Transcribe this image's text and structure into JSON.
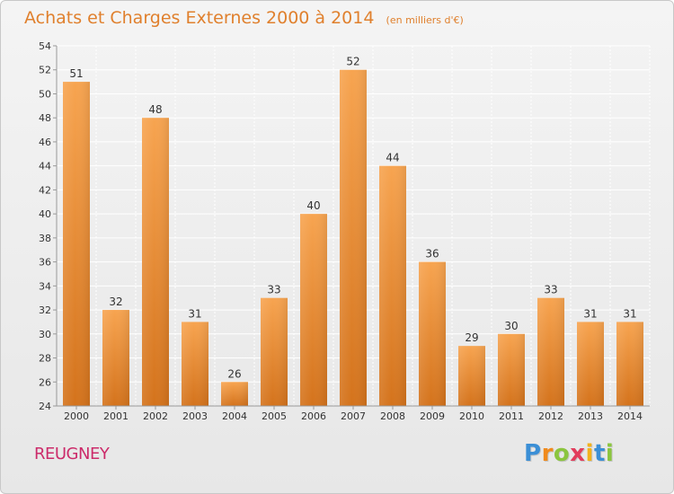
{
  "header": {
    "title": "Achats et Charges Externes 2000 à 2014",
    "subtitle": "(en milliers d'€)"
  },
  "commune": "REUGNEY",
  "brand": {
    "letters": [
      "P",
      "r",
      "o",
      "x",
      "i",
      "t",
      "i"
    ],
    "colors": [
      "#3b8fd6",
      "#f08a1c",
      "#8bc53f",
      "#e23d5c",
      "#f2b21b",
      "#3b8fd6",
      "#8bc53f"
    ]
  },
  "colors": {
    "bar_top": "#f7a450",
    "bar_bottom": "#d4731c",
    "title": "#e0802d",
    "commune": "#cc2b6a",
    "grid": "#ffffff",
    "axis": "#999999",
    "text": "#333333"
  },
  "chart_data": {
    "type": "bar",
    "title": "Achats et Charges Externes 2000 à 2014",
    "subtitle": "(en milliers d'€)",
    "categories": [
      "2000",
      "2001",
      "2002",
      "2003",
      "2004",
      "2005",
      "2006",
      "2007",
      "2008",
      "2009",
      "2010",
      "2011",
      "2012",
      "2013",
      "2014"
    ],
    "values": [
      51,
      32,
      48,
      31,
      26,
      33,
      40,
      52,
      44,
      36,
      29,
      30,
      33,
      31,
      31
    ],
    "ylim": [
      24,
      54
    ],
    "yticks": [
      24,
      26,
      28,
      30,
      32,
      34,
      36,
      38,
      40,
      42,
      44,
      46,
      48,
      50,
      52,
      54
    ],
    "xlabel": "",
    "ylabel": "",
    "grid": true,
    "data_labels": true
  }
}
